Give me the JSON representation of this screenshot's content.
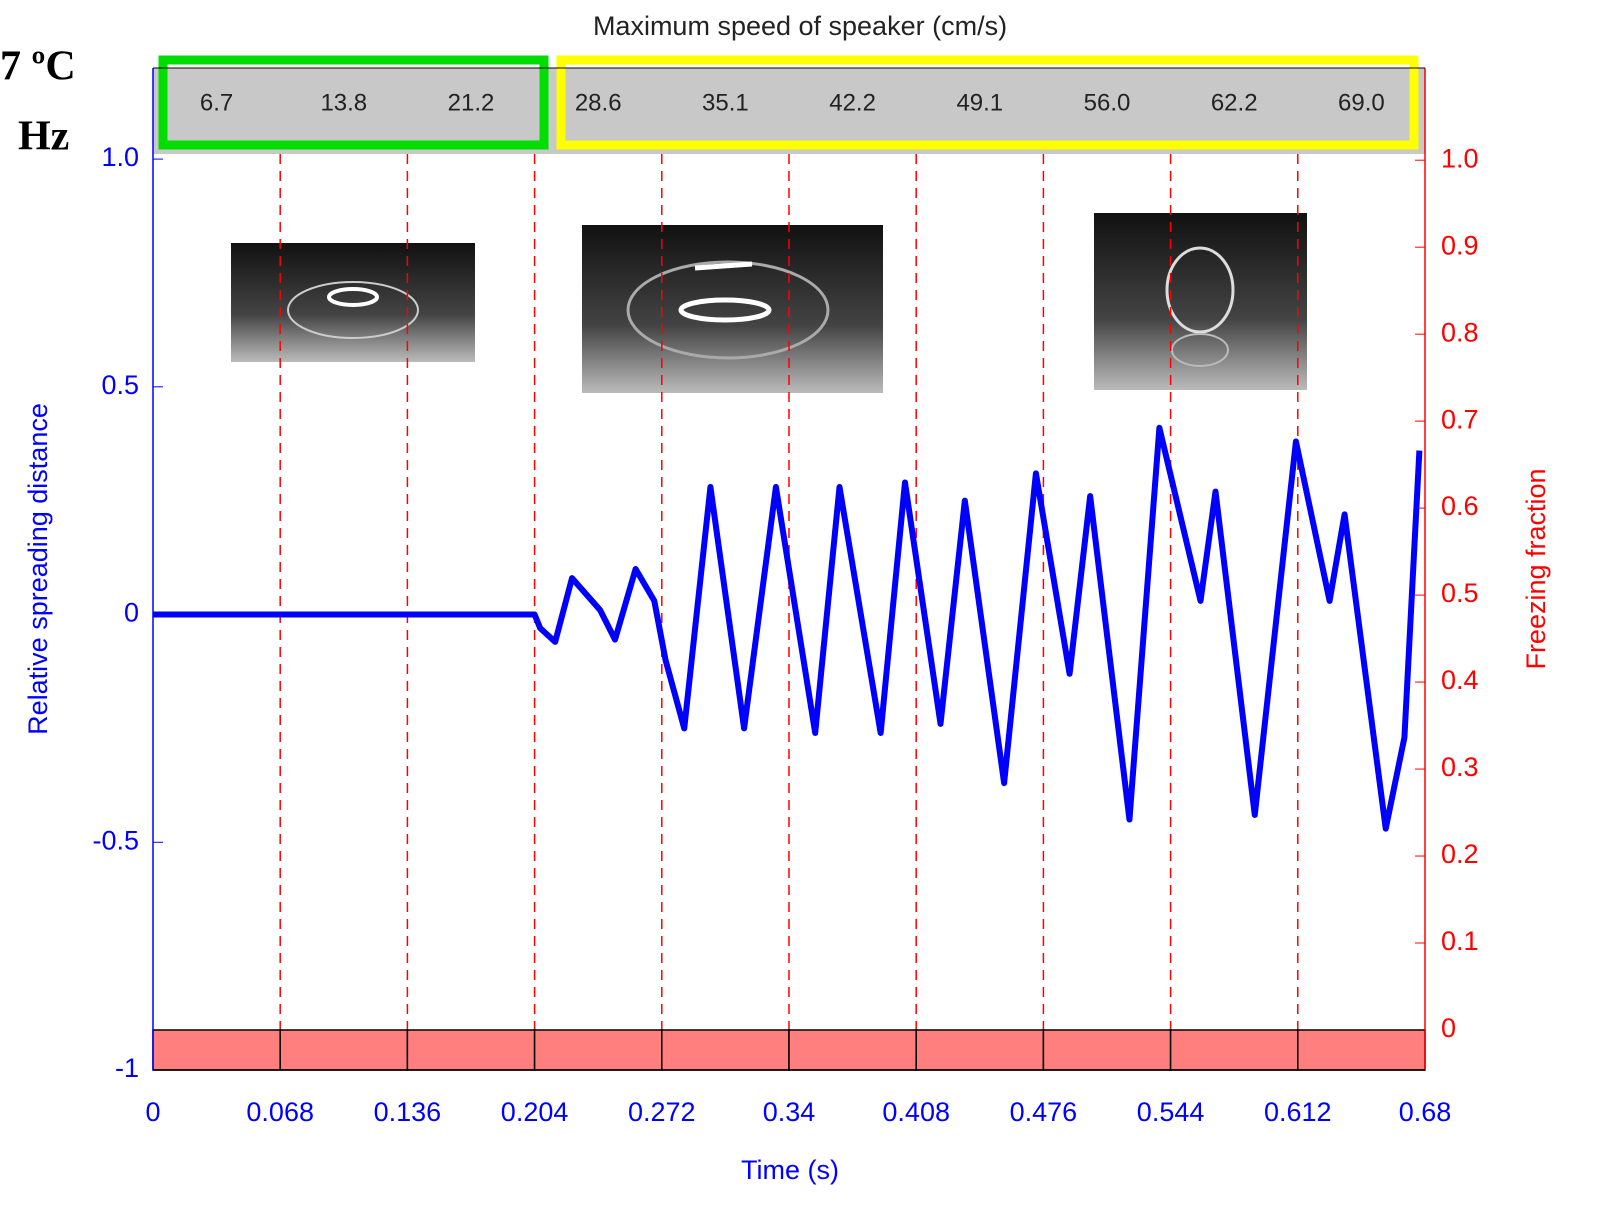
{
  "chart_data": {
    "type": "line",
    "top_axis_label": "Maximum speed of speaker (cm/s)",
    "top_categories": [
      "6.7",
      "13.8",
      "21.2",
      "28.6",
      "35.1",
      "42.2",
      "49.1",
      "56.0",
      "62.2",
      "69.0"
    ],
    "corner_text": [
      "7 ºC",
      "Hz"
    ],
    "xlabel": "Time (s)",
    "ylabel": "Relative spreading distance",
    "y2label": "Freezing fraction",
    "xlim": [
      0,
      0.68
    ],
    "xticks": [
      0,
      0.068,
      0.136,
      0.204,
      0.272,
      0.34,
      0.408,
      0.476,
      0.544,
      0.612,
      0.68
    ],
    "ylim": [
      -1,
      1.2
    ],
    "yticks": [
      -1,
      -0.5,
      0,
      0.5,
      {
        "value": 1,
        "label": "1.0"
      }
    ],
    "y2lim": [
      -0.046,
      1.106
    ],
    "y2ticks": [
      0,
      0.1,
      0.2,
      0.3,
      0.4,
      0.5,
      0.6,
      0.7,
      0.8,
      0.9,
      {
        "value": 1,
        "label": "1.0"
      }
    ],
    "grid": "x-dashed",
    "series": [
      {
        "color": "#0000ff",
        "x": [
          0,
          0.204,
          0.207,
          0.215,
          0.224,
          0.239,
          0.247,
          0.258,
          0.268,
          0.274,
          0.284,
          0.298,
          0.316,
          0.333,
          0.354,
          0.367,
          0.389,
          0.402,
          0.421,
          0.434,
          0.455,
          0.472,
          0.49,
          0.501,
          0.522,
          0.538,
          0.56,
          0.568,
          0.589,
          0.611,
          0.629,
          0.637,
          0.659,
          0.669,
          0.677
        ],
        "values": [
          0,
          0,
          -0.03,
          -0.06,
          0.08,
          0.01,
          -0.055,
          0.1,
          0.03,
          -0.1,
          -0.25,
          0.28,
          -0.25,
          0.28,
          -0.26,
          0.28,
          -0.26,
          0.29,
          -0.24,
          0.25,
          -0.37,
          0.31,
          -0.13,
          0.26,
          -0.45,
          0.41,
          0.03,
          0.27,
          -0.44,
          0.38,
          0.03,
          0.22,
          -0.47,
          -0.27,
          0.36
        ]
      },
      {
        "color": "#ff7f7f",
        "axis": "y2",
        "type": "bar",
        "bins": [
          0,
          0.068,
          0.136,
          0.204,
          0.272,
          0.34,
          0.408,
          0.476,
          0.544,
          0.612,
          0.68
        ],
        "values": [
          0,
          0,
          0,
          0,
          0,
          0,
          0,
          0,
          0,
          0
        ]
      }
    ]
  }
}
